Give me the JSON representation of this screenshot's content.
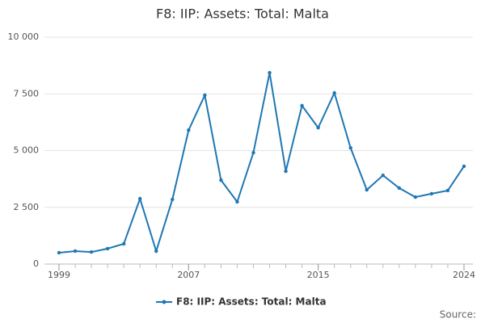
{
  "chart_data": {
    "type": "line",
    "title": "F8: IIP: Assets: Total: Malta",
    "x": [
      1999,
      2000,
      2001,
      2002,
      2003,
      2004,
      2005,
      2006,
      2007,
      2008,
      2009,
      2010,
      2011,
      2012,
      2013,
      2014,
      2015,
      2016,
      2017,
      2018,
      2019,
      2020,
      2021,
      2022,
      2023,
      2024
    ],
    "series": [
      {
        "name": "F8: IIP: Assets: Total: Malta",
        "color": "#1f77b4",
        "values": [
          500,
          570,
          530,
          680,
          890,
          2880,
          570,
          2850,
          5900,
          7440,
          3700,
          2740,
          4910,
          8430,
          4090,
          6980,
          6010,
          7540,
          5120,
          3270,
          3910,
          3350,
          2950,
          3100,
          3240,
          4310
        ]
      }
    ],
    "xlim": [
      1999,
      2024
    ],
    "xticks": [
      1999,
      2007,
      2015,
      2024
    ],
    "ylim": [
      0,
      10000
    ],
    "yticks": [
      0,
      {
        "value": 2500,
        "label": "2 500"
      },
      {
        "value": 5000,
        "label": "5 000"
      },
      {
        "value": 7500,
        "label": "7 500"
      },
      {
        "value": 10000,
        "label": "10 000"
      }
    ],
    "grid": true,
    "source": "Source:"
  }
}
